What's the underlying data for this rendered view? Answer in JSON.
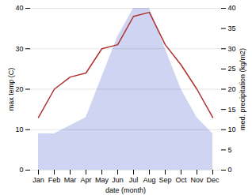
{
  "chart_data": {
    "type": "line",
    "categories": [
      "Jan",
      "Feb",
      "Mar",
      "Apr",
      "May",
      "Jun",
      "Jul",
      "Aug",
      "Sep",
      "Oct",
      "Nov",
      "Dec"
    ],
    "series": [
      {
        "type": "area",
        "axis": "y2",
        "color": "#c5cdf0",
        "values": [
          9,
          9,
          11,
          13,
          23,
          33,
          40,
          40,
          30,
          20,
          13,
          9
        ]
      },
      {
        "type": "line",
        "color": "#b03030",
        "values": [
          13,
          20,
          23,
          24,
          30,
          31,
          38,
          39,
          31,
          26,
          20,
          13
        ]
      }
    ],
    "xlabel": "date (month)",
    "ylabel": "max temp (C)",
    "y2label": "med. precipitation (kg/m2)",
    "ylim": [
      0,
      40
    ],
    "yticks": [
      0,
      10,
      20,
      30,
      40
    ],
    "y2lim": [
      0,
      40
    ],
    "y2ticks": [
      0,
      5,
      10,
      15,
      20,
      25,
      30,
      35,
      40
    ],
    "grid": true
  }
}
